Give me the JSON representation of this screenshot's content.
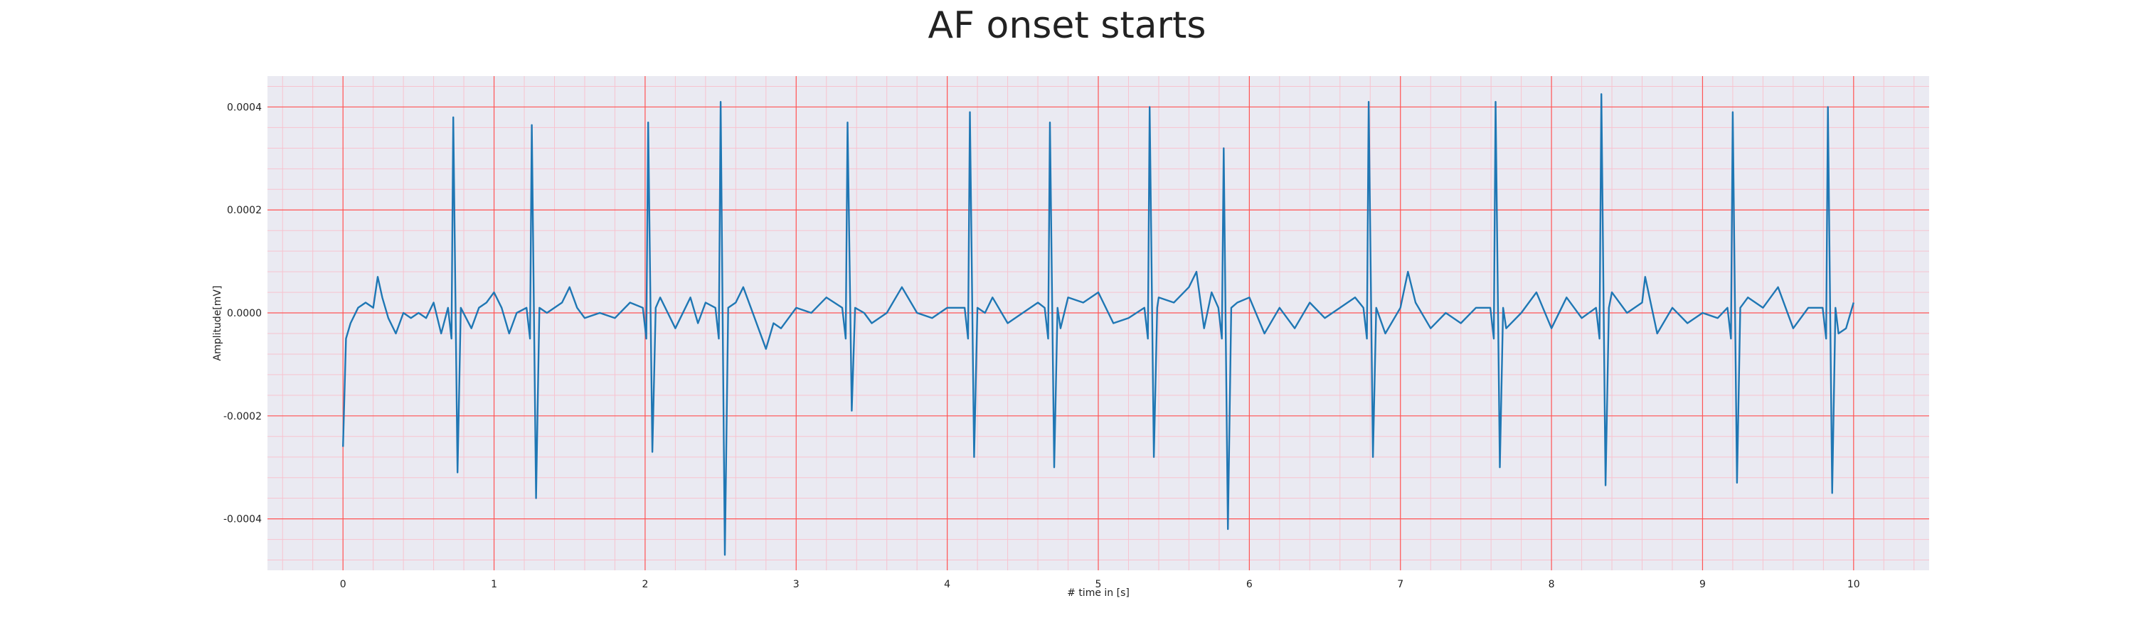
{
  "chart_data": {
    "type": "line",
    "title": "AF onset starts",
    "xlabel": "# time in [s]",
    "ylabel": "Amplitude[mV]",
    "xlim": [
      -0.5,
      10.5
    ],
    "ylim": [
      -0.0005,
      0.00046
    ],
    "xticks": [
      0,
      1,
      2,
      3,
      4,
      5,
      6,
      7,
      8,
      9,
      10
    ],
    "xtick_labels": [
      "0",
      "1",
      "2",
      "3",
      "4",
      "5",
      "6",
      "7",
      "8",
      "9",
      "10"
    ],
    "yticks": [
      -0.0004,
      -0.0002,
      0.0,
      0.0002,
      0.0004
    ],
    "ytick_labels": [
      "-0.0004",
      "-0.0002",
      "0.0000",
      "0.0002",
      "0.0004"
    ],
    "grid": true,
    "minor_grid": true,
    "colors": {
      "background": "#EAEAF2",
      "major_grid": "#FF5555",
      "minor_grid": "#F7C3CF",
      "line": "#1F77B4"
    },
    "series": [
      {
        "beats": [
          {
            "t": 0.73,
            "peak": 0.00038,
            "trough": -0.00031
          },
          {
            "t": 1.25,
            "peak": 0.000365,
            "trough": -0.00036
          },
          {
            "t": 2.02,
            "peak": 0.00037,
            "trough": -0.00027
          },
          {
            "t": 2.5,
            "peak": 0.00041,
            "trough": -0.00047
          },
          {
            "t": 3.34,
            "peak": 0.00037,
            "trough": -0.00019
          },
          {
            "t": 4.15,
            "peak": 0.00039,
            "trough": -0.00028
          },
          {
            "t": 4.68,
            "peak": 0.00037,
            "trough": -0.0003
          },
          {
            "t": 5.34,
            "peak": 0.0004,
            "trough": -0.00028
          },
          {
            "t": 5.83,
            "peak": 0.00032,
            "trough": -0.00042
          },
          {
            "t": 6.79,
            "peak": 0.00041,
            "trough": -0.00028
          },
          {
            "t": 7.63,
            "peak": 0.00041,
            "trough": -0.0003
          },
          {
            "t": 8.33,
            "peak": 0.000425,
            "trough": -0.000335
          },
          {
            "t": 9.2,
            "peak": 0.00039,
            "trough": -0.00033
          },
          {
            "t": 9.83,
            "peak": 0.0004,
            "trough": -0.00035
          }
        ],
        "baseline_x": [
          0.0,
          0.02,
          0.05,
          0.1,
          0.15,
          0.2,
          0.23,
          0.26,
          0.3,
          0.35,
          0.4,
          0.45,
          0.5,
          0.55,
          0.6,
          0.65,
          0.85,
          0.9,
          0.95,
          1.0,
          1.05,
          1.1,
          1.15,
          1.35,
          1.45,
          1.5,
          1.55,
          1.6,
          1.7,
          1.8,
          1.9,
          2.1,
          2.15,
          2.2,
          2.3,
          2.35,
          2.4,
          2.6,
          2.65,
          2.7,
          2.8,
          2.85,
          2.9,
          3.0,
          3.1,
          3.2,
          3.45,
          3.5,
          3.6,
          3.7,
          3.8,
          3.9,
          4.0,
          4.25,
          4.3,
          4.4,
          4.5,
          4.6,
          4.75,
          4.8,
          4.9,
          5.0,
          5.1,
          5.2,
          5.4,
          5.5,
          5.6,
          5.65,
          5.7,
          5.75,
          5.92,
          6.0,
          6.1,
          6.2,
          6.3,
          6.4,
          6.5,
          6.6,
          6.7,
          6.9,
          7.0,
          7.05,
          7.1,
          7.2,
          7.3,
          7.4,
          7.5,
          7.7,
          7.8,
          7.9,
          8.0,
          8.1,
          8.2,
          8.4,
          8.5,
          8.6,
          8.62,
          8.7,
          8.8,
          8.9,
          9.0,
          9.1,
          9.3,
          9.4,
          9.5,
          9.6,
          9.7,
          9.9,
          9.95,
          10.0
        ],
        "baseline_y": [
          -0.00026,
          -5e-05,
          -2e-05,
          1e-05,
          2e-05,
          1e-05,
          7e-05,
          3e-05,
          -1e-05,
          -4e-05,
          0.0,
          -1e-05,
          0.0,
          -1e-05,
          2e-05,
          -4e-05,
          -3e-05,
          1e-05,
          2e-05,
          4e-05,
          1e-05,
          -4e-05,
          0.0,
          0.0,
          2e-05,
          5e-05,
          1e-05,
          -1e-05,
          0.0,
          -1e-05,
          2e-05,
          3e-05,
          0.0,
          -3e-05,
          3e-05,
          -2e-05,
          2e-05,
          2e-05,
          5e-05,
          1e-05,
          -7e-05,
          -2e-05,
          -3e-05,
          1e-05,
          0.0,
          3e-05,
          0.0,
          -2e-05,
          0.0,
          5e-05,
          0.0,
          -1e-05,
          1e-05,
          0.0,
          3e-05,
          -2e-05,
          0.0,
          2e-05,
          -3e-05,
          3e-05,
          2e-05,
          4e-05,
          -2e-05,
          -1e-05,
          3e-05,
          2e-05,
          5e-05,
          8e-05,
          -3e-05,
          4e-05,
          2e-05,
          3e-05,
          -4e-05,
          1e-05,
          -3e-05,
          2e-05,
          -1e-05,
          1e-05,
          3e-05,
          -4e-05,
          1e-05,
          8e-05,
          2e-05,
          -3e-05,
          0.0,
          -2e-05,
          1e-05,
          -3e-05,
          0.0,
          4e-05,
          -3e-05,
          3e-05,
          -1e-05,
          4e-05,
          0.0,
          2e-05,
          7e-05,
          -4e-05,
          1e-05,
          -2e-05,
          0.0,
          -1e-05,
          3e-05,
          1e-05,
          5e-05,
          -3e-05,
          1e-05,
          -4e-05,
          -3e-05,
          2e-05
        ]
      }
    ]
  }
}
